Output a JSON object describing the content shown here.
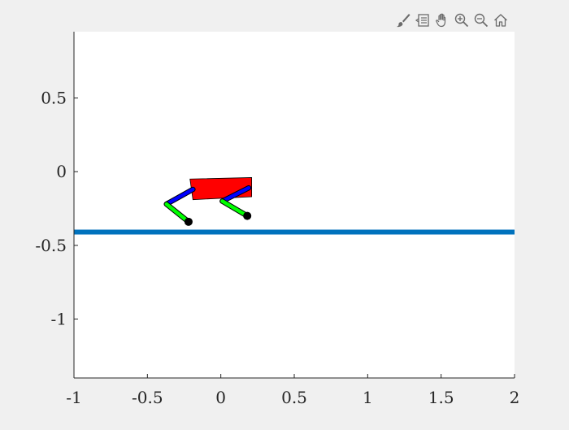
{
  "toolbar": {
    "items": [
      {
        "name": "brush-icon"
      },
      {
        "name": "datatip-icon"
      },
      {
        "name": "pan-hand-icon"
      },
      {
        "name": "zoom-in-icon"
      },
      {
        "name": "zoom-out-icon"
      },
      {
        "name": "home-icon"
      }
    ]
  },
  "chart_data": {
    "type": "line",
    "title": "",
    "xlabel": "",
    "ylabel": "",
    "xlim": [
      -1,
      2
    ],
    "ylim": [
      -1.4,
      0.95
    ],
    "grid": false,
    "xticks": [
      -1,
      -0.5,
      0,
      0.5,
      1,
      1.5,
      2
    ],
    "xtick_labels": [
      "-1",
      "-0.5",
      "0",
      "0.5",
      "1",
      "1.5",
      "2"
    ],
    "yticks": [
      -1,
      -0.5,
      0,
      0.5
    ],
    "ytick_labels": [
      "-1",
      "-0.5",
      "0",
      "0.5"
    ],
    "ground": {
      "x": [
        -1,
        2
      ],
      "y": [
        -0.41,
        -0.41
      ],
      "color": "#0072bd"
    },
    "robot": {
      "body": {
        "color": "#ff0000",
        "x": [
          -0.21,
          0.21,
          0.21,
          -0.19
        ],
        "y": [
          -0.05,
          -0.04,
          -0.17,
          -0.19
        ]
      },
      "legs": [
        {
          "upper": {
            "x": [
              -0.19,
              -0.37
            ],
            "y": [
              -0.12,
              -0.22
            ],
            "color": "#0000ff"
          },
          "lower": {
            "x": [
              -0.37,
              -0.22
            ],
            "y": [
              -0.22,
              -0.34
            ],
            "color": "#00ff00"
          },
          "foot": {
            "x": -0.22,
            "y": -0.34,
            "color": "#000000"
          }
        },
        {
          "upper": {
            "x": [
              0.19,
              0.01
            ],
            "y": [
              -0.11,
              -0.2
            ],
            "color": "#0000ff"
          },
          "lower": {
            "x": [
              0.01,
              0.18
            ],
            "y": [
              -0.2,
              -0.3
            ],
            "color": "#00ff00"
          },
          "foot": {
            "x": 0.18,
            "y": -0.3,
            "color": "#000000"
          }
        }
      ]
    }
  }
}
